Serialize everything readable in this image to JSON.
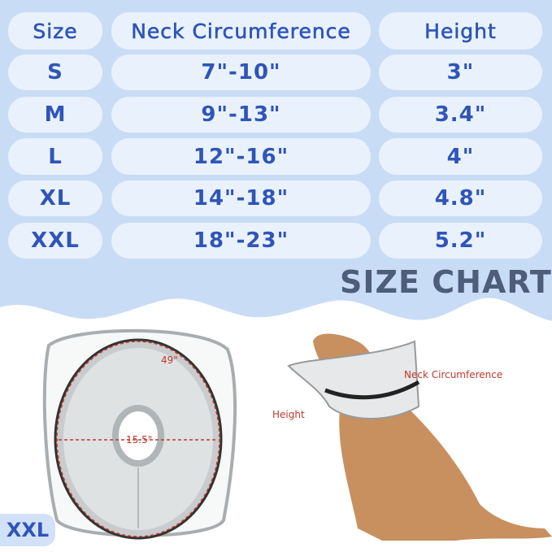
{
  "table": {
    "headers": [
      "Size",
      "Neck Circumference",
      "Height"
    ],
    "rows": [
      {
        "size": "S",
        "neck": "7\"-10\"",
        "height": "3\""
      },
      {
        "size": "M",
        "neck": "9\"-13\"",
        "height": "3.4\""
      },
      {
        "size": "L",
        "neck": "12\"-16\"",
        "height": "4\""
      },
      {
        "size": "XL",
        "neck": "14\"-18\"",
        "height": "4.8\""
      },
      {
        "size": "XXL",
        "neck": "18\"-23\"",
        "height": "5.2\""
      }
    ]
  },
  "title": "SIZE CHART",
  "product": {
    "badge": "XXL",
    "outer_label": "49\"",
    "inner_label": "15.5\""
  },
  "dog_labels": {
    "neck": "Neck Circumference",
    "height": "Height"
  },
  "colors": {
    "background": "#c9dcf5",
    "pill": "#e9f1fc",
    "text": "#2f55b8",
    "title": "#4d5d7a",
    "measure": "#c0392b"
  }
}
